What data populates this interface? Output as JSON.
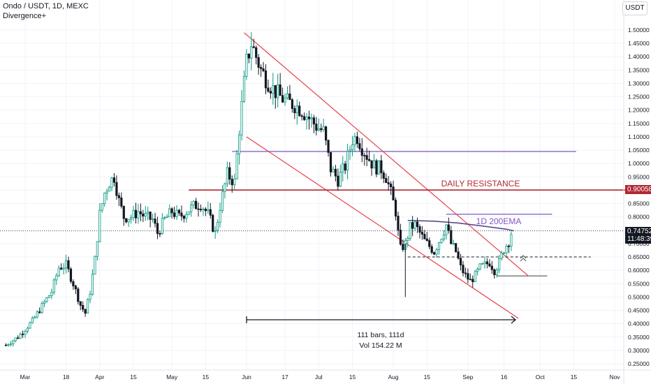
{
  "header": {
    "symbol": "Ondo / USDT, 1D, MEXC",
    "indicator": "Divergence+"
  },
  "currency_label": "USDT",
  "labels": {
    "resistance_price": "0.90058",
    "current_price": "0.74752",
    "countdown": "11:48:39"
  },
  "chart_data": {
    "type": "candlestick",
    "title": "",
    "symbol": "Ondo / USDT",
    "timeframe": "1D",
    "exchange": "MEXC",
    "y_axis": {
      "range": [
        0.22,
        1.51
      ],
      "ticks": [
        "1.50000",
        "1.45000",
        "1.40000",
        "1.35000",
        "1.30000",
        "1.25000",
        "1.20000",
        "1.15000",
        "1.10000",
        "1.05000",
        "1.00000",
        "0.95000",
        "0.90000",
        "0.85000",
        "0.80000",
        "0.75000",
        "0.70000",
        "0.65000",
        "0.60000",
        "0.55000",
        "0.50000",
        "0.45000",
        "0.40000",
        "0.35000",
        "0.30000",
        "0.25000"
      ]
    },
    "x_axis": {
      "ticks": [
        {
          "label": "Mar",
          "day": 0
        },
        {
          "label": "18",
          "day": 17
        },
        {
          "label": "Apr",
          "day": 31
        },
        {
          "label": "15",
          "day": 45
        },
        {
          "label": "May",
          "day": 61
        },
        {
          "label": "15",
          "day": 75
        },
        {
          "label": "Jun",
          "day": 92
        },
        {
          "label": "17",
          "day": 108
        },
        {
          "label": "Jul",
          "day": 122
        },
        {
          "label": "15",
          "day": 136
        },
        {
          "label": "Aug",
          "day": 153
        },
        {
          "label": "15",
          "day": 167
        },
        {
          "label": "Sep",
          "day": 184
        },
        {
          "label": "16",
          "day": 199
        },
        {
          "label": "Oct",
          "day": 214
        },
        {
          "label": "15",
          "day": 228
        },
        {
          "label": "Nov",
          "day": 245
        }
      ]
    },
    "price_path": [
      [
        -8,
        0.32
      ],
      [
        -3,
        0.35
      ],
      [
        3,
        0.41
      ],
      [
        8,
        0.48
      ],
      [
        11,
        0.52
      ],
      [
        14,
        0.61
      ],
      [
        17,
        0.62
      ],
      [
        20,
        0.55
      ],
      [
        23,
        0.47
      ],
      [
        25,
        0.44
      ],
      [
        27,
        0.52
      ],
      [
        29,
        0.64
      ],
      [
        31,
        0.81
      ],
      [
        33,
        0.89
      ],
      [
        35,
        0.93
      ],
      [
        37,
        0.95
      ],
      [
        39,
        0.86
      ],
      [
        41,
        0.8
      ],
      [
        44,
        0.8
      ],
      [
        47,
        0.82
      ],
      [
        50,
        0.8
      ],
      [
        53,
        0.79
      ],
      [
        55,
        0.74
      ],
      [
        58,
        0.79
      ],
      [
        61,
        0.82
      ],
      [
        64,
        0.8
      ],
      [
        67,
        0.82
      ],
      [
        70,
        0.84
      ],
      [
        73,
        0.85
      ],
      [
        76,
        0.81
      ],
      [
        79,
        0.74
      ],
      [
        81,
        0.84
      ],
      [
        84,
        0.96
      ],
      [
        87,
        0.93
      ],
      [
        89,
        1.13
      ],
      [
        91,
        1.3
      ],
      [
        92,
        1.38
      ],
      [
        94,
        1.45
      ],
      [
        96,
        1.4
      ],
      [
        98,
        1.35
      ],
      [
        100,
        1.32
      ],
      [
        103,
        1.28
      ],
      [
        106,
        1.25
      ],
      [
        109,
        1.23
      ],
      [
        112,
        1.22
      ],
      [
        115,
        1.2
      ],
      [
        118,
        1.17
      ],
      [
        121,
        1.14
      ],
      [
        124,
        1.12
      ],
      [
        127,
        0.98
      ],
      [
        130,
        0.94
      ],
      [
        133,
        0.99
      ],
      [
        136,
        1.09
      ],
      [
        138,
        1.1
      ],
      [
        140,
        1.06
      ],
      [
        142,
        1.03
      ],
      [
        145,
        0.99
      ],
      [
        148,
        0.98
      ],
      [
        150,
        0.95
      ],
      [
        152,
        0.89
      ],
      [
        154,
        0.82
      ],
      [
        155,
        0.74
      ],
      [
        156,
        0.68
      ],
      [
        158,
        0.7
      ],
      [
        160,
        0.76
      ],
      [
        162,
        0.77
      ],
      [
        164,
        0.74
      ],
      [
        166,
        0.71
      ],
      [
        168,
        0.69
      ],
      [
        170,
        0.67
      ],
      [
        173,
        0.73
      ],
      [
        175,
        0.77
      ],
      [
        177,
        0.7
      ],
      [
        179,
        0.67
      ],
      [
        181,
        0.61
      ],
      [
        183,
        0.58
      ],
      [
        185,
        0.56
      ],
      [
        187,
        0.58
      ],
      [
        189,
        0.61
      ],
      [
        191,
        0.62
      ],
      [
        193,
        0.63
      ],
      [
        195,
        0.6
      ],
      [
        197,
        0.63
      ],
      [
        199,
        0.68
      ],
      [
        201,
        0.71
      ],
      [
        202,
        0.74
      ]
    ],
    "lines": [
      {
        "name": "channel-upper",
        "from": [
          91,
          1.49
        ],
        "to": [
          209,
          0.58
        ],
        "color": "#e83f4a"
      },
      {
        "name": "channel-lower",
        "from": [
          92,
          1.1
        ],
        "to": [
          205,
          0.42
        ],
        "color": "#e83f4a"
      },
      {
        "name": "daily-resistance",
        "from": [
          68,
          0.90058
        ],
        "to": [
          260,
          0.90058
        ],
        "color": "#b22833"
      },
      {
        "name": "horizontal-purple-upper",
        "from": [
          86,
          1.045
        ],
        "to": [
          229,
          1.045
        ],
        "color": "#7e57c2"
      },
      {
        "name": "horizontal-purple-lower",
        "from": [
          175,
          0.81
        ],
        "to": [
          219,
          0.81
        ],
        "color": "#7e57c2"
      },
      {
        "name": "support-gray",
        "from": [
          196,
          0.579
        ],
        "to": [
          217,
          0.579
        ],
        "color": "#555555"
      }
    ],
    "ema_200": {
      "label": "1D 200EMA",
      "color": "#5b4a8b",
      "points": [
        [
          159,
          0.787
        ],
        [
          170,
          0.784
        ],
        [
          180,
          0.777
        ],
        [
          190,
          0.766
        ],
        [
          200,
          0.754
        ],
        [
          203,
          0.748
        ]
      ]
    },
    "dashed_level": {
      "y": 0.65,
      "from": [
        159
      ],
      "to": [
        235
      ]
    },
    "current_price": 0.74752,
    "annotations": {
      "daily_resistance": "DAILY RESISTANCE",
      "ema_label": "1D 200EMA",
      "range_bars": "111 bars, 111d",
      "range_volume": "Vol 154.22 M"
    },
    "colors": {
      "up": "#089981",
      "down": "#131722",
      "resistance": "#b22833",
      "channel": "#e83f4a",
      "ema": "#5b4a8b"
    }
  }
}
